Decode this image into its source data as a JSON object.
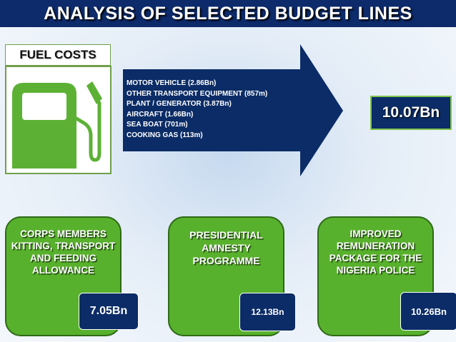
{
  "title": "ANALYSIS OF SELECTED BUDGET LINES",
  "fuel": {
    "label": "FUEL COSTS",
    "icon": "fuel-pump-icon",
    "items": [
      "MOTOR VEHICLE (2.86Bn)",
      "OTHER TRANSPORT EQUIPMENT (857m)",
      "PLANT / GENERATOR (3.87Bn)",
      "AIRCRAFT (1.66Bn)",
      "SEA BOAT (701m)",
      "COOKING GAS (113m)"
    ],
    "total": "10.07Bn"
  },
  "cards": [
    {
      "label": "CORPS MEMBERS KITTING, TRANSPORT AND FEEDING ALLOWANCE",
      "value": "7.05Bn"
    },
    {
      "label": "PRESIDENTIAL AMNESTY PROGRAMME",
      "value": "12.13Bn"
    },
    {
      "label": "IMPROVED REMUNERATION PACKAGE FOR THE NIGERIA POLICE",
      "value": "10.26Bn"
    }
  ],
  "colors": {
    "navy": "#0b2c66",
    "green": "#58b12c",
    "icon_green": "#5cb135",
    "border_green": "#6fa04a"
  }
}
